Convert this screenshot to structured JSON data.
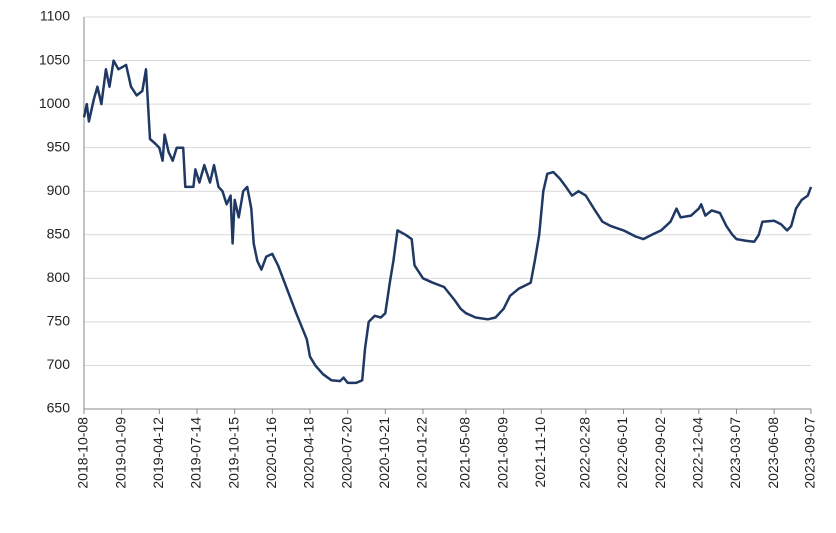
{
  "chart_data": {
    "type": "line",
    "color": "#203864",
    "grid": true,
    "x": [
      "2018-10-08",
      "2018-10-15",
      "2018-10-20",
      "2018-11-01",
      "2018-11-10",
      "2018-11-20",
      "2018-12-01",
      "2018-12-10",
      "2018-12-20",
      "2019-01-01",
      "2019-01-20",
      "2019-02-01",
      "2019-02-15",
      "2019-03-01",
      "2019-03-10",
      "2019-03-15",
      "2019-03-20",
      "2019-04-01",
      "2019-04-12",
      "2019-04-20",
      "2019-04-25",
      "2019-05-05",
      "2019-05-15",
      "2019-05-25",
      "2019-06-10",
      "2019-06-15",
      "2019-07-05",
      "2019-07-10",
      "2019-07-20",
      "2019-08-01",
      "2019-08-15",
      "2019-08-25",
      "2019-09-05",
      "2019-09-15",
      "2019-09-25",
      "2019-10-05",
      "2019-10-10",
      "2019-10-15",
      "2019-10-25",
      "2019-11-05",
      "2019-11-15",
      "2019-11-25",
      "2019-12-01",
      "2019-12-10",
      "2019-12-20",
      "2020-01-01",
      "2020-01-16",
      "2020-01-30",
      "2020-03-15",
      "2020-04-10",
      "2020-04-18",
      "2020-05-01",
      "2020-05-20",
      "2020-06-10",
      "2020-07-01",
      "2020-07-10",
      "2020-07-20",
      "2020-08-10",
      "2020-08-25",
      "2020-09-01",
      "2020-09-10",
      "2020-09-25",
      "2020-10-10",
      "2020-10-21",
      "2020-11-01",
      "2020-11-10",
      "2020-11-20",
      "2020-12-10",
      "2020-12-25",
      "2021-01-01",
      "2021-01-22",
      "2021-02-15",
      "2021-03-15",
      "2021-04-10",
      "2021-04-25",
      "2021-05-08",
      "2021-06-01",
      "2021-07-01",
      "2021-07-20",
      "2021-08-09",
      "2021-08-25",
      "2021-09-15",
      "2021-10-15",
      "2021-10-25",
      "2021-11-05",
      "2021-11-15",
      "2021-11-25",
      "2021-12-10",
      "2021-12-25",
      "2022-01-10",
      "2022-01-25",
      "2022-02-10",
      "2022-02-28",
      "2022-03-20",
      "2022-04-10",
      "2022-05-01",
      "2022-06-01",
      "2022-07-01",
      "2022-07-20",
      "2022-08-10",
      "2022-09-02",
      "2022-09-25",
      "2022-10-10",
      "2022-10-20",
      "2022-11-15",
      "2022-12-04",
      "2022-12-10",
      "2022-12-20",
      "2023-01-05",
      "2023-01-25",
      "2023-02-10",
      "2023-02-25",
      "2023-03-07",
      "2023-04-01",
      "2023-04-20",
      "2023-05-01",
      "2023-05-10",
      "2023-06-08",
      "2023-06-25",
      "2023-07-10",
      "2023-07-20",
      "2023-08-01",
      "2023-08-15",
      "2023-08-30",
      "2023-09-07"
    ],
    "values": [
      985,
      1000,
      980,
      1005,
      1020,
      1000,
      1040,
      1020,
      1050,
      1040,
      1045,
      1020,
      1010,
      1015,
      1040,
      1000,
      960,
      955,
      950,
      935,
      965,
      945,
      935,
      950,
      950,
      905,
      905,
      925,
      910,
      930,
      910,
      930,
      905,
      900,
      885,
      895,
      840,
      890,
      870,
      900,
      905,
      880,
      840,
      820,
      810,
      825,
      828,
      815,
      760,
      730,
      710,
      700,
      690,
      683,
      682,
      686,
      680,
      680,
      683,
      720,
      750,
      757,
      755,
      760,
      795,
      820,
      855,
      850,
      845,
      815,
      800,
      795,
      790,
      775,
      765,
      760,
      755,
      753,
      755,
      765,
      780,
      788,
      795,
      820,
      850,
      900,
      920,
      922,
      915,
      905,
      895,
      900,
      895,
      880,
      865,
      860,
      855,
      848,
      845,
      850,
      855,
      865,
      880,
      870,
      872,
      880,
      885,
      872,
      878,
      875,
      860,
      850,
      845,
      843,
      842,
      850,
      865,
      866,
      862,
      855,
      860,
      880,
      890,
      895,
      905
    ],
    "xlim": [
      "2018-10-08",
      "2023-09-07"
    ],
    "xticks": [
      "2018-10-08",
      "2019-01-09",
      "2019-04-12",
      "2019-07-14",
      "2019-10-15",
      "2020-01-16",
      "2020-04-18",
      "2020-07-20",
      "2020-10-21",
      "2021-01-22",
      "2021-05-08",
      "2021-08-09",
      "2021-11-10",
      "2022-02-28",
      "2022-06-01",
      "2022-09-02",
      "2022-12-04",
      "2023-03-07",
      "2023-06-08",
      "2023-09-07"
    ],
    "ylim": [
      650,
      1100
    ],
    "yticks": [
      650,
      700,
      750,
      800,
      850,
      900,
      950,
      1000,
      1050,
      1100
    ]
  }
}
